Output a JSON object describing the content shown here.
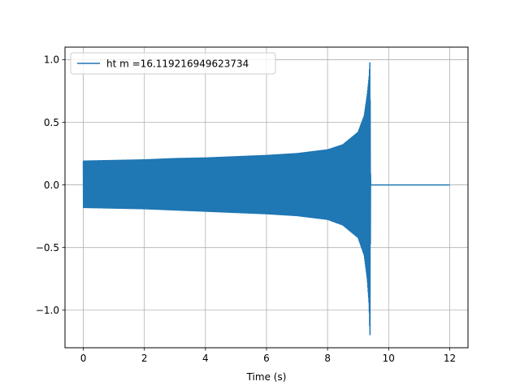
{
  "chart_data": {
    "type": "line",
    "title": "",
    "xlabel": "Time (s)",
    "ylabel": "",
    "xlim": [
      -0.6,
      12.6
    ],
    "ylim": [
      -1.3,
      1.1
    ],
    "xticks": [
      0,
      2,
      4,
      6,
      8,
      10,
      12
    ],
    "yticks": [
      -1.0,
      -0.5,
      0.0,
      0.5,
      1.0
    ],
    "xtick_labels": [
      "0",
      "2",
      "4",
      "6",
      "8",
      "10",
      "12"
    ],
    "ytick_labels": [
      "−1.0",
      "−0.5",
      "0.0",
      "0.5",
      "1.0"
    ],
    "grid": true,
    "legend": {
      "placement": "upper-left"
    },
    "series": [
      {
        "name": "ht m =16.119216949623734",
        "color": "#1f77b4",
        "envelope": {
          "t": [
            0,
            1,
            2,
            3,
            4,
            5,
            6,
            7,
            8,
            8.5,
            9.0,
            9.2,
            9.3,
            9.36,
            9.39,
            9.41
          ],
          "upper": [
            0.19,
            0.195,
            0.2,
            0.21,
            0.215,
            0.225,
            0.235,
            0.25,
            0.28,
            0.32,
            0.42,
            0.55,
            0.72,
            0.86,
            1.0,
            0.0
          ],
          "lower": [
            -0.18,
            -0.185,
            -0.19,
            -0.2,
            -0.21,
            -0.22,
            -0.23,
            -0.245,
            -0.275,
            -0.32,
            -0.42,
            -0.56,
            -0.75,
            -0.95,
            -1.23,
            0.0
          ]
        },
        "ringdown_end": 9.42,
        "flat": {
          "t_start": 9.42,
          "t_end": 12.0,
          "value": 0.0
        }
      }
    ]
  }
}
